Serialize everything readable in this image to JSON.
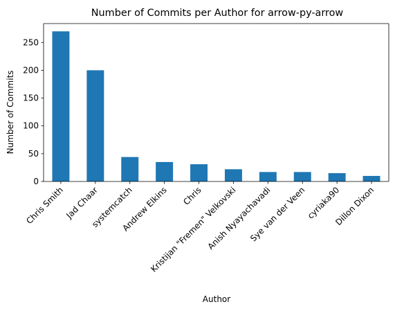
{
  "chart_data": {
    "type": "bar",
    "title": "Number of Commits per Author for arrow-py-arrow",
    "xlabel": "Author",
    "ylabel": "Number of Commits",
    "categories": [
      "Chris Smith",
      "Jad Chaar",
      "systemcatch",
      "Andrew Elkins",
      "Chris",
      "Kristijan \"Fremen\" Velkovski",
      "Anish Nyayachavadi",
      "Sye van der Veen",
      "cyriaka90",
      "Dillon Dixon"
    ],
    "values": [
      270,
      200,
      44,
      35,
      31,
      22,
      17,
      17,
      15,
      10
    ],
    "ylim": [
      0,
      284
    ],
    "yticks": [
      0,
      50,
      100,
      150,
      200,
      250
    ],
    "grid": false,
    "legend": "none",
    "colors": {
      "bar": "#1f77b4",
      "axis": "#000000",
      "background": "#ffffff"
    }
  }
}
